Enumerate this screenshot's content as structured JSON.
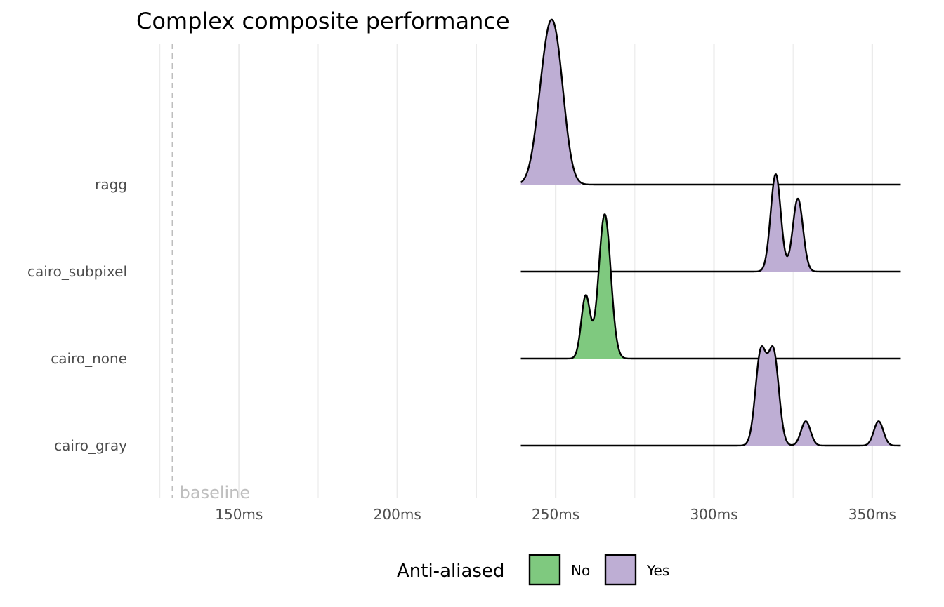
{
  "chart_data": {
    "type": "ridgeline",
    "title": "Complex composite performance",
    "xlabel": "",
    "ylabel": "",
    "x_unit": "ms",
    "xlim": [
      123,
      361
    ],
    "x_ticks": [
      {
        "value": 150,
        "label": "150ms"
      },
      {
        "value": 200,
        "label": "200ms"
      },
      {
        "value": 250,
        "label": "250ms"
      },
      {
        "value": 300,
        "label": "300ms"
      },
      {
        "value": 350,
        "label": "350ms"
      }
    ],
    "x_minor_ticks": [
      125,
      175,
      225,
      275,
      325
    ],
    "grid": true,
    "baseline": {
      "value": 129,
      "label": "baseline"
    },
    "legend": {
      "title": "Anti-aliased",
      "position": "bottom",
      "entries": [
        {
          "label": "No",
          "color": "#7fc97f"
        },
        {
          "label": "Yes",
          "color": "#beaed4"
        }
      ]
    },
    "series": [
      {
        "name": "ragg",
        "anti_aliased": "Yes",
        "x_range": [
          239,
          359
        ],
        "fill_range": [
          239,
          258
        ],
        "peaks": [
          {
            "center": 245.7,
            "sd": 2.6,
            "height": 0.31
          },
          {
            "center": 248.3,
            "sd": 2.6,
            "height": 0.48
          },
          {
            "center": 250.9,
            "sd": 2.6,
            "height": 0.45
          }
        ]
      },
      {
        "name": "cairo_subpixel",
        "anti_aliased": "Yes",
        "x_range": [
          239,
          359
        ],
        "fill_range": [
          311,
          333
        ],
        "peaks": [
          {
            "center": 319.5,
            "sd": 1.6,
            "height": 0.56
          },
          {
            "center": 326.5,
            "sd": 1.6,
            "height": 0.42
          }
        ]
      },
      {
        "name": "cairo_none",
        "anti_aliased": "No",
        "x_range": [
          239,
          359
        ],
        "fill_range": [
          254,
          273
        ],
        "peaks": [
          {
            "center": 259.5,
            "sd": 1.4,
            "height": 0.36
          },
          {
            "center": 265.5,
            "sd": 1.9,
            "height": 0.83
          }
        ]
      },
      {
        "name": "cairo_gray",
        "anti_aliased": "Yes",
        "x_range": [
          239,
          359
        ],
        "fill_range": [
          308,
          359
        ],
        "peaks": [
          {
            "center": 314.8,
            "sd": 1.7,
            "height": 0.53
          },
          {
            "center": 318.8,
            "sd": 1.7,
            "height": 0.53
          },
          {
            "center": 329.0,
            "sd": 1.5,
            "height": 0.14
          },
          {
            "center": 352.0,
            "sd": 1.5,
            "height": 0.14
          }
        ]
      }
    ]
  }
}
